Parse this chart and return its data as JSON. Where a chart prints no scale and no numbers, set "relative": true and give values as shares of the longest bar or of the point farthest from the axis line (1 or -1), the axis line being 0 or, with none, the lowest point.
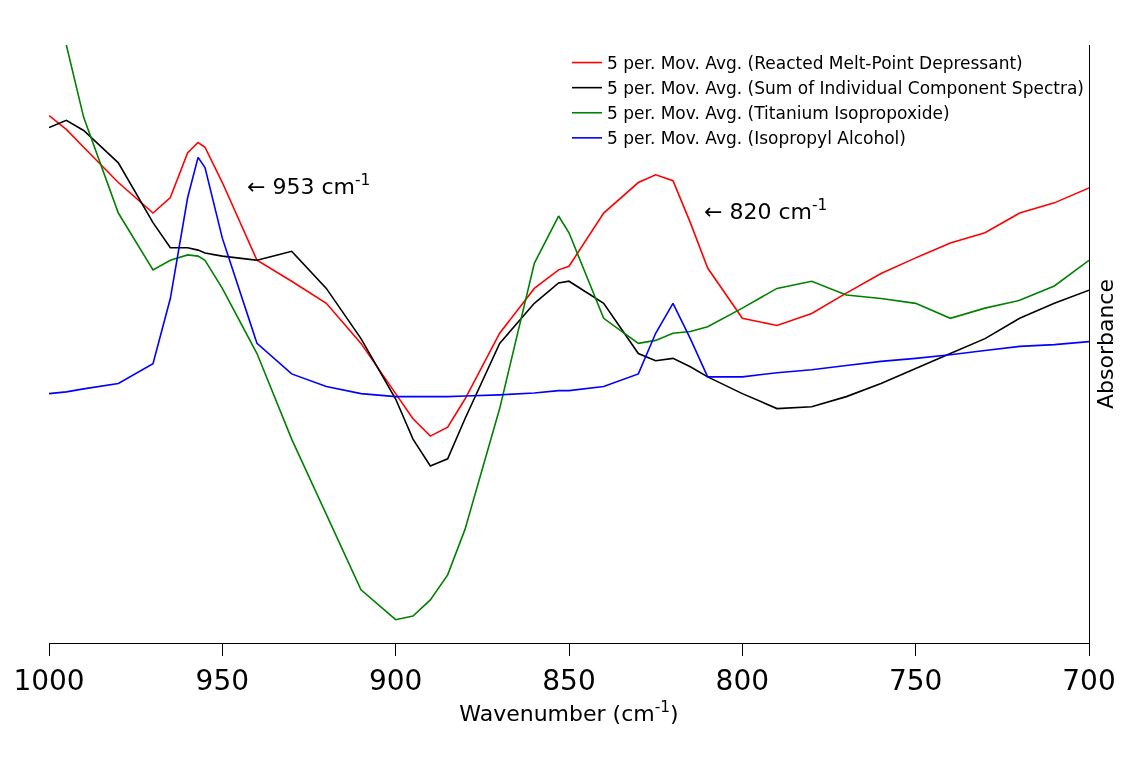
{
  "chart_data": {
    "type": "line",
    "relative": true,
    "xlabel": "Wavenumber (cm$^{-1}$)",
    "ylabel": "Absorbance",
    "x": [
      1000,
      995,
      990,
      980,
      970,
      965,
      960,
      957,
      955,
      950,
      940,
      930,
      920,
      910,
      900,
      895,
      890,
      885,
      880,
      870,
      860,
      853,
      850,
      840,
      830,
      825,
      820,
      815,
      810,
      800,
      790,
      780,
      770,
      760,
      750,
      740,
      730,
      720,
      710,
      700
    ],
    "xlim": [
      1000,
      700
    ],
    "xticks": [
      1000,
      950,
      900,
      850,
      800,
      750,
      700
    ],
    "series": [
      {
        "name": "5 per. Mov. Avg. (Reacted Melt-Point Depressant)",
        "color": "#ff0000",
        "values": [
          0.882,
          0.859,
          0.829,
          0.77,
          0.719,
          0.745,
          0.82,
          0.837,
          0.829,
          0.77,
          0.64,
          0.605,
          0.568,
          0.501,
          0.417,
          0.375,
          0.346,
          0.361,
          0.408,
          0.518,
          0.593,
          0.624,
          0.63,
          0.719,
          0.77,
          0.783,
          0.773,
          0.703,
          0.627,
          0.543,
          0.531,
          0.551,
          0.585,
          0.618,
          0.644,
          0.669,
          0.686,
          0.719,
          0.736,
          0.761
        ]
      },
      {
        "name": "5 per. Mov. Avg. (Sum of Individual Component Spectra)",
        "color": "#000000",
        "values": [
          0.862,
          0.874,
          0.857,
          0.803,
          0.703,
          0.661,
          0.661,
          0.657,
          0.652,
          0.647,
          0.64,
          0.655,
          0.593,
          0.509,
          0.408,
          0.341,
          0.296,
          0.308,
          0.375,
          0.501,
          0.568,
          0.602,
          0.605,
          0.568,
          0.484,
          0.472,
          0.476,
          0.462,
          0.445,
          0.417,
          0.392,
          0.395,
          0.412,
          0.434,
          0.459,
          0.484,
          0.509,
          0.543,
          0.568,
          0.59
        ]
      },
      {
        "name": "5 per. Mov. Avg. (Titanium Isopropoxide)",
        "color": "#008000",
        "values": [
          null,
          1.0,
          0.879,
          0.719,
          0.624,
          0.64,
          0.649,
          0.647,
          0.64,
          0.593,
          0.484,
          0.341,
          0.215,
          0.089,
          0.039,
          0.045,
          0.072,
          0.114,
          0.19,
          0.392,
          0.635,
          0.714,
          0.686,
          0.543,
          0.501,
          0.506,
          0.518,
          0.521,
          0.529,
          0.56,
          0.593,
          0.605,
          0.582,
          0.576,
          0.568,
          0.543,
          0.56,
          0.573,
          0.597,
          0.64
        ]
      },
      {
        "name": "5 per. Mov. Avg. (Isopropyl Alcohol)",
        "color": "#0000ff",
        "values": [
          0.417,
          0.42,
          0.425,
          0.434,
          0.467,
          0.576,
          0.745,
          0.812,
          0.795,
          0.677,
          0.501,
          0.45,
          0.429,
          0.417,
          0.412,
          0.412,
          0.412,
          0.412,
          0.413,
          0.415,
          0.418,
          0.422,
          0.422,
          0.429,
          0.45,
          0.518,
          0.568,
          0.509,
          0.445,
          0.445,
          0.452,
          0.457,
          0.464,
          0.471,
          0.476,
          0.482,
          0.489,
          0.496,
          0.499,
          0.504
        ]
      }
    ],
    "annotations": [
      "← 953 cm$^{-1}$",
      "← 820 cm$^{-1}$"
    ],
    "legend": "top right",
    "grid": false,
    "marker": "none",
    "line_style": "solid"
  }
}
